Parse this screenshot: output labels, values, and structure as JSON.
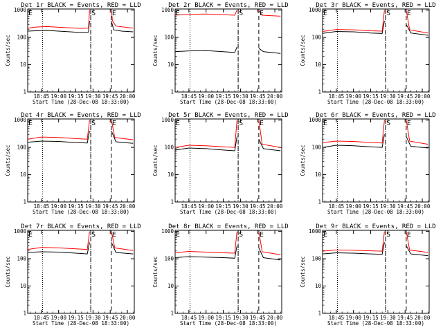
{
  "colors": {
    "events": "#000000",
    "lld": "#ff0000",
    "axes": "#000000",
    "background": "#ffffff"
  },
  "common": {
    "xlabel": "Start Time (28-Dec-08 18:33:00)",
    "ylabel": "Counts/sec",
    "x_ticks": [
      "18:45",
      "19:00",
      "19:15",
      "19:30",
      "19:45",
      "20:00"
    ],
    "y_ticks": [
      "1",
      "10",
      "100",
      "1000"
    ]
  },
  "chart_data": [
    {
      "type": "line",
      "title": "Det 1r BLACK = Events, RED = LLD",
      "xlim": [
        "18:33",
        "20:06"
      ],
      "ylim": [
        1,
        1100
      ],
      "yscale": "log",
      "markers": [
        {
          "label": "E",
          "x": "18:33"
        },
        {
          "label": "S",
          "x": "19:28"
        },
        {
          "label": "E",
          "x": "19:46"
        }
      ],
      "gaps": [
        [
          "19:27",
          "19:46"
        ]
      ],
      "dotted_lines": [
        "18:46",
        "19:28"
      ],
      "dashed_lines": [
        "19:28",
        "19:46"
      ],
      "series": [
        {
          "values": [
            [
              "18:33",
              170
            ],
            [
              "18:40",
              175
            ],
            [
              "18:50",
              180
            ],
            [
              "19:00",
              170
            ],
            [
              "19:10",
              160
            ],
            [
              "19:20",
              150
            ],
            [
              "19:26",
              155
            ],
            [
              "19:27",
              400
            ],
            [
              "19:46",
              400
            ],
            [
              "19:48",
              190
            ],
            [
              "19:55",
              170
            ],
            [
              "20:05",
              160
            ]
          ]
        },
        {
          "values": [
            [
              "18:33",
              220
            ],
            [
              "18:40",
              240
            ],
            [
              "18:50",
              250
            ],
            [
              "19:00",
              235
            ],
            [
              "19:10",
              225
            ],
            [
              "19:20",
              215
            ],
            [
              "19:26",
              220
            ],
            [
              "19:27",
              1000
            ],
            [
              "19:46",
              1000
            ],
            [
              "19:47",
              400
            ],
            [
              "19:50",
              260
            ],
            [
              "20:05",
              220
            ]
          ]
        }
      ]
    },
    {
      "type": "line",
      "title": "Det 2r BLACK = Events, RED = LLD",
      "xlim": [
        "18:33",
        "20:06"
      ],
      "ylim": [
        1,
        1100
      ],
      "yscale": "log",
      "markers": [
        {
          "label": "E",
          "x": "18:33"
        },
        {
          "label": "S",
          "x": "19:28"
        },
        {
          "label": "E",
          "x": "19:46"
        }
      ],
      "gaps": [
        [
          "19:27",
          "19:46"
        ]
      ],
      "dotted_lines": [
        "18:46",
        "19:28"
      ],
      "dashed_lines": [
        "19:28",
        "19:46"
      ],
      "series": [
        {
          "values": [
            [
              "18:33",
              30
            ],
            [
              "18:45",
              32
            ],
            [
              "19:00",
              33
            ],
            [
              "19:15",
              30
            ],
            [
              "19:25",
              28
            ],
            [
              "19:27",
              45
            ],
            [
              "19:46",
              40
            ],
            [
              "19:50",
              30
            ],
            [
              "20:05",
              26
            ]
          ]
        },
        {
          "values": [
            [
              "18:33",
              650
            ],
            [
              "18:45",
              700
            ],
            [
              "19:00",
              720
            ],
            [
              "19:15",
              680
            ],
            [
              "19:25",
              650
            ],
            [
              "19:27",
              1000
            ],
            [
              "19:46",
              1000
            ],
            [
              "19:49",
              650
            ],
            [
              "20:05",
              600
            ]
          ]
        }
      ]
    },
    {
      "type": "line",
      "title": "Det 3r BLACK = Events, RED = LLD",
      "xlim": [
        "18:33",
        "20:06"
      ],
      "ylim": [
        1,
        1100
      ],
      "yscale": "log",
      "markers": [
        {
          "label": "E",
          "x": "18:33"
        },
        {
          "label": "S",
          "x": "19:28"
        },
        {
          "label": "E",
          "x": "19:46"
        }
      ],
      "gaps": [
        [
          "19:27",
          "19:46"
        ]
      ],
      "dotted_lines": [
        "18:46",
        "19:28"
      ],
      "dashed_lines": [
        "19:28",
        "19:46"
      ],
      "series": [
        {
          "values": [
            [
              "18:33",
              140
            ],
            [
              "18:45",
              165
            ],
            [
              "19:00",
              160
            ],
            [
              "19:15",
              145
            ],
            [
              "19:25",
              140
            ],
            [
              "19:27",
              400
            ],
            [
              "19:46",
              300
            ],
            [
              "19:50",
              145
            ],
            [
              "20:05",
              120
            ]
          ]
        },
        {
          "values": [
            [
              "18:33",
              165
            ],
            [
              "18:45",
              195
            ],
            [
              "19:00",
              190
            ],
            [
              "19:15",
              175
            ],
            [
              "19:25",
              170
            ],
            [
              "19:27",
              1000
            ],
            [
              "19:46",
              1000
            ],
            [
              "19:49",
              190
            ],
            [
              "20:05",
              145
            ]
          ]
        }
      ]
    },
    {
      "type": "line",
      "title": "Det 4r BLACK = Events, RED = LLD",
      "xlim": [
        "18:33",
        "20:06"
      ],
      "ylim": [
        1,
        1100
      ],
      "yscale": "log",
      "markers": [
        {
          "label": "E",
          "x": "18:33"
        },
        {
          "label": "S",
          "x": "19:28"
        },
        {
          "label": "E",
          "x": "19:46"
        }
      ],
      "gaps": [
        [
          "19:27",
          "19:46"
        ]
      ],
      "dotted_lines": [
        "18:46",
        "19:28"
      ],
      "dashed_lines": [
        "19:28",
        "19:46"
      ],
      "series": [
        {
          "values": [
            [
              "18:33",
              155
            ],
            [
              "18:45",
              170
            ],
            [
              "19:00",
              165
            ],
            [
              "19:15",
              150
            ],
            [
              "19:25",
              145
            ],
            [
              "19:27",
              400
            ],
            [
              "19:46",
              400
            ],
            [
              "19:50",
              160
            ],
            [
              "20:05",
              140
            ]
          ]
        },
        {
          "values": [
            [
              "18:33",
              200
            ],
            [
              "18:45",
              240
            ],
            [
              "19:00",
              230
            ],
            [
              "19:15",
              210
            ],
            [
              "19:25",
              200
            ],
            [
              "19:27",
              1000
            ],
            [
              "19:46",
              1000
            ],
            [
              "19:49",
              230
            ],
            [
              "20:05",
              190
            ]
          ]
        }
      ]
    },
    {
      "type": "line",
      "title": "Det 5r BLACK = Events, RED = LLD",
      "xlim": [
        "18:33",
        "20:06"
      ],
      "ylim": [
        1,
        1100
      ],
      "yscale": "log",
      "markers": [
        {
          "label": "E",
          "x": "18:33"
        },
        {
          "label": "S",
          "x": "19:28"
        },
        {
          "label": "E",
          "x": "19:46"
        }
      ],
      "gaps": [
        [
          "19:27",
          "19:46"
        ]
      ],
      "dotted_lines": [
        "18:46",
        "19:28"
      ],
      "dashed_lines": [
        "19:28",
        "19:46"
      ],
      "series": [
        {
          "values": [
            [
              "18:33",
              80
            ],
            [
              "18:45",
              95
            ],
            [
              "19:00",
              90
            ],
            [
              "19:15",
              80
            ],
            [
              "19:25",
              75
            ],
            [
              "19:27",
              250
            ],
            [
              "19:46",
              200
            ],
            [
              "19:50",
              90
            ],
            [
              "20:05",
              75
            ]
          ]
        },
        {
          "values": [
            [
              "18:33",
              100
            ],
            [
              "18:45",
              120
            ],
            [
              "19:00",
              115
            ],
            [
              "19:15",
              105
            ],
            [
              "19:25",
              100
            ],
            [
              "19:27",
              1000
            ],
            [
              "19:46",
              1000
            ],
            [
              "19:49",
              130
            ],
            [
              "20:05",
              100
            ]
          ]
        }
      ]
    },
    {
      "type": "line",
      "title": "Det 6r BLACK = Events, RED = LLD",
      "xlim": [
        "18:33",
        "20:06"
      ],
      "ylim": [
        1,
        1100
      ],
      "yscale": "log",
      "markers": [
        {
          "label": "E",
          "x": "18:33"
        },
        {
          "label": "S",
          "x": "19:28"
        },
        {
          "label": "E",
          "x": "19:46"
        }
      ],
      "gaps": [
        [
          "19:27",
          "19:46"
        ]
      ],
      "dotted_lines": [
        "18:46",
        "19:28"
      ],
      "dashed_lines": [
        "19:28",
        "19:46"
      ],
      "series": [
        {
          "values": [
            [
              "18:33",
              100
            ],
            [
              "18:45",
              120
            ],
            [
              "19:00",
              115
            ],
            [
              "19:15",
              105
            ],
            [
              "19:25",
              100
            ],
            [
              "19:27",
              300
            ],
            [
              "19:46",
              250
            ],
            [
              "19:50",
              110
            ],
            [
              "20:05",
              95
            ]
          ]
        },
        {
          "values": [
            [
              "18:33",
              150
            ],
            [
              "18:45",
              170
            ],
            [
              "19:00",
              165
            ],
            [
              "19:15",
              150
            ],
            [
              "19:25",
              145
            ],
            [
              "19:27",
              1000
            ],
            [
              "19:46",
              1000
            ],
            [
              "19:49",
              170
            ],
            [
              "20:05",
              130
            ]
          ]
        }
      ]
    },
    {
      "type": "line",
      "title": "Det 7r BLACK = Events, RED = LLD",
      "xlim": [
        "18:33",
        "20:06"
      ],
      "ylim": [
        1,
        1100
      ],
      "yscale": "log",
      "markers": [
        {
          "label": "E",
          "x": "18:33"
        },
        {
          "label": "S",
          "x": "19:28"
        },
        {
          "label": "E",
          "x": "19:46"
        }
      ],
      "gaps": [
        [
          "19:27",
          "19:46"
        ]
      ],
      "dotted_lines": [
        "18:46",
        "19:28"
      ],
      "dashed_lines": [
        "19:28",
        "19:46"
      ],
      "series": [
        {
          "values": [
            [
              "18:33",
              170
            ],
            [
              "18:45",
              180
            ],
            [
              "19:00",
              175
            ],
            [
              "19:15",
              160
            ],
            [
              "19:25",
              150
            ],
            [
              "19:27",
              400
            ],
            [
              "19:46",
              400
            ],
            [
              "19:50",
              170
            ],
            [
              "20:05",
              150
            ]
          ]
        },
        {
          "values": [
            [
              "18:33",
              220
            ],
            [
              "18:45",
              260
            ],
            [
              "19:00",
              250
            ],
            [
              "19:15",
              230
            ],
            [
              "19:25",
              220
            ],
            [
              "19:27",
              1000
            ],
            [
              "19:46",
              1000
            ],
            [
              "19:49",
              250
            ],
            [
              "20:05",
              200
            ]
          ]
        }
      ]
    },
    {
      "type": "line",
      "title": "Det 8r BLACK = Events, RED = LLD",
      "xlim": [
        "18:33",
        "20:06"
      ],
      "ylim": [
        1,
        1100
      ],
      "yscale": "log",
      "markers": [
        {
          "label": "E",
          "x": "18:33"
        },
        {
          "label": "S",
          "x": "19:28"
        },
        {
          "label": "E",
          "x": "19:46"
        }
      ],
      "gaps": [
        [
          "19:27",
          "19:46"
        ]
      ],
      "dotted_lines": [
        "18:46",
        "19:28"
      ],
      "dashed_lines": [
        "19:28",
        "19:46"
      ],
      "series": [
        {
          "values": [
            [
              "18:33",
              110
            ],
            [
              "18:45",
              120
            ],
            [
              "19:00",
              115
            ],
            [
              "19:15",
              110
            ],
            [
              "19:25",
              105
            ],
            [
              "19:27",
              300
            ],
            [
              "19:46",
              250
            ],
            [
              "19:50",
              110
            ],
            [
              "20:05",
              90
            ]
          ]
        },
        {
          "values": [
            [
              "18:33",
              165
            ],
            [
              "18:45",
              185
            ],
            [
              "19:00",
              175
            ],
            [
              "19:15",
              165
            ],
            [
              "19:25",
              160
            ],
            [
              "19:27",
              1000
            ],
            [
              "19:46",
              1000
            ],
            [
              "19:49",
              180
            ],
            [
              "20:05",
              140
            ]
          ]
        }
      ]
    },
    {
      "type": "line",
      "title": "Det 9r BLACK = Events, RED = LLD",
      "xlim": [
        "18:33",
        "20:06"
      ],
      "ylim": [
        1,
        1100
      ],
      "yscale": "log",
      "markers": [
        {
          "label": "E",
          "x": "18:33"
        },
        {
          "label": "S",
          "x": "19:28"
        },
        {
          "label": "E",
          "x": "19:46"
        }
      ],
      "gaps": [
        [
          "19:27",
          "19:46"
        ]
      ],
      "dotted_lines": [
        "18:46",
        "19:28"
      ],
      "dashed_lines": [
        "19:28",
        "19:46"
      ],
      "series": [
        {
          "values": [
            [
              "18:33",
              150
            ],
            [
              "18:45",
              165
            ],
            [
              "19:00",
              160
            ],
            [
              "19:15",
              150
            ],
            [
              "19:25",
              145
            ],
            [
              "19:27",
              400
            ],
            [
              "19:46",
              300
            ],
            [
              "19:50",
              150
            ],
            [
              "20:05",
              130
            ]
          ]
        },
        {
          "values": [
            [
              "18:33",
              190
            ],
            [
              "18:45",
              210
            ],
            [
              "19:00",
              205
            ],
            [
              "19:15",
              195
            ],
            [
              "19:25",
              190
            ],
            [
              "19:27",
              1000
            ],
            [
              "19:46",
              1000
            ],
            [
              "19:49",
              210
            ],
            [
              "20:05",
              170
            ]
          ]
        }
      ]
    }
  ]
}
